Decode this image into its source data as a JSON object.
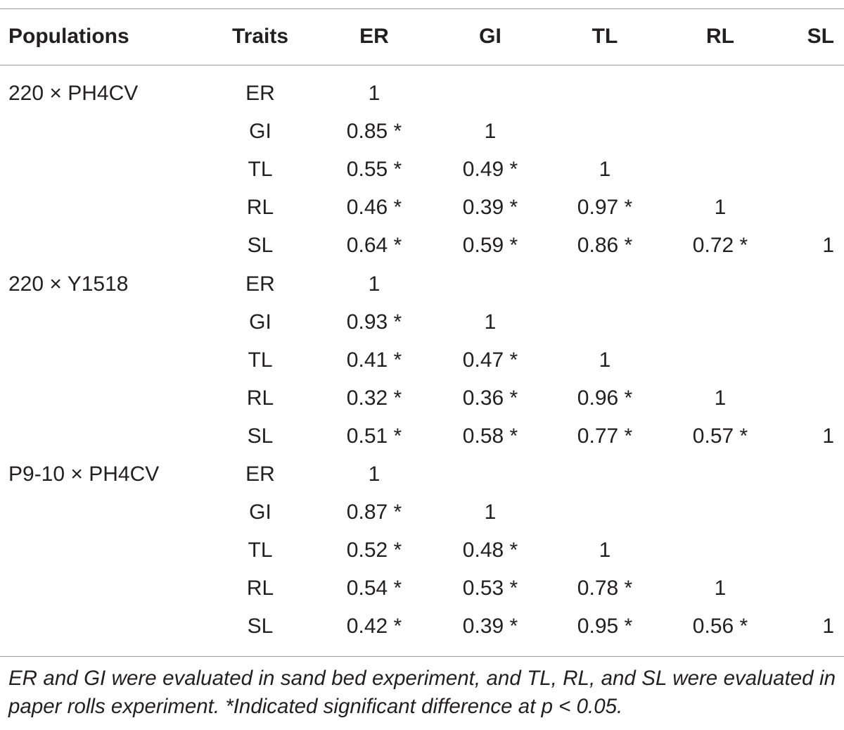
{
  "table": {
    "header": [
      "Populations",
      "Traits",
      "ER",
      "GI",
      "TL",
      "RL",
      "SL"
    ],
    "groups": [
      {
        "population": "220 × PH4CV",
        "rows": [
          {
            "trait": "ER",
            "values": [
              "1"
            ]
          },
          {
            "trait": "GI",
            "values": [
              "0.85 *",
              "1"
            ]
          },
          {
            "trait": "TL",
            "values": [
              "0.55 *",
              "0.49 *",
              "1"
            ]
          },
          {
            "trait": "RL",
            "values": [
              "0.46 *",
              "0.39 *",
              "0.97 *",
              "1"
            ]
          },
          {
            "trait": "SL",
            "values": [
              "0.64 *",
              "0.59 *",
              "0.86 *",
              "0.72 *",
              "1"
            ]
          }
        ]
      },
      {
        "population": "220 × Y1518",
        "rows": [
          {
            "trait": "ER",
            "values": [
              "1"
            ]
          },
          {
            "trait": "GI",
            "values": [
              "0.93 *",
              "1"
            ]
          },
          {
            "trait": "TL",
            "values": [
              "0.41 *",
              "0.47 *",
              "1"
            ]
          },
          {
            "trait": "RL",
            "values": [
              "0.32 *",
              "0.36 *",
              "0.96 *",
              "1"
            ]
          },
          {
            "trait": "SL",
            "values": [
              "0.51 *",
              "0.58 *",
              "0.77 *",
              "0.57 *",
              "1"
            ]
          }
        ]
      },
      {
        "population": "P9-10 × PH4CV",
        "rows": [
          {
            "trait": "ER",
            "values": [
              "1"
            ]
          },
          {
            "trait": "GI",
            "values": [
              "0.87 *",
              "1"
            ]
          },
          {
            "trait": "TL",
            "values": [
              "0.52 *",
              "0.48 *",
              "1"
            ]
          },
          {
            "trait": "RL",
            "values": [
              "0.54 *",
              "0.53 *",
              "0.78 *",
              "1"
            ]
          },
          {
            "trait": "SL",
            "values": [
              "0.42 *",
              "0.39 *",
              "0.95 *",
              "0.56 *",
              "1"
            ]
          }
        ]
      }
    ],
    "footnote": "ER and GI were evaluated in sand bed experiment, and TL, RL, and SL were evaluated in paper rolls experiment. *Indicated significant difference at p < 0.05."
  }
}
